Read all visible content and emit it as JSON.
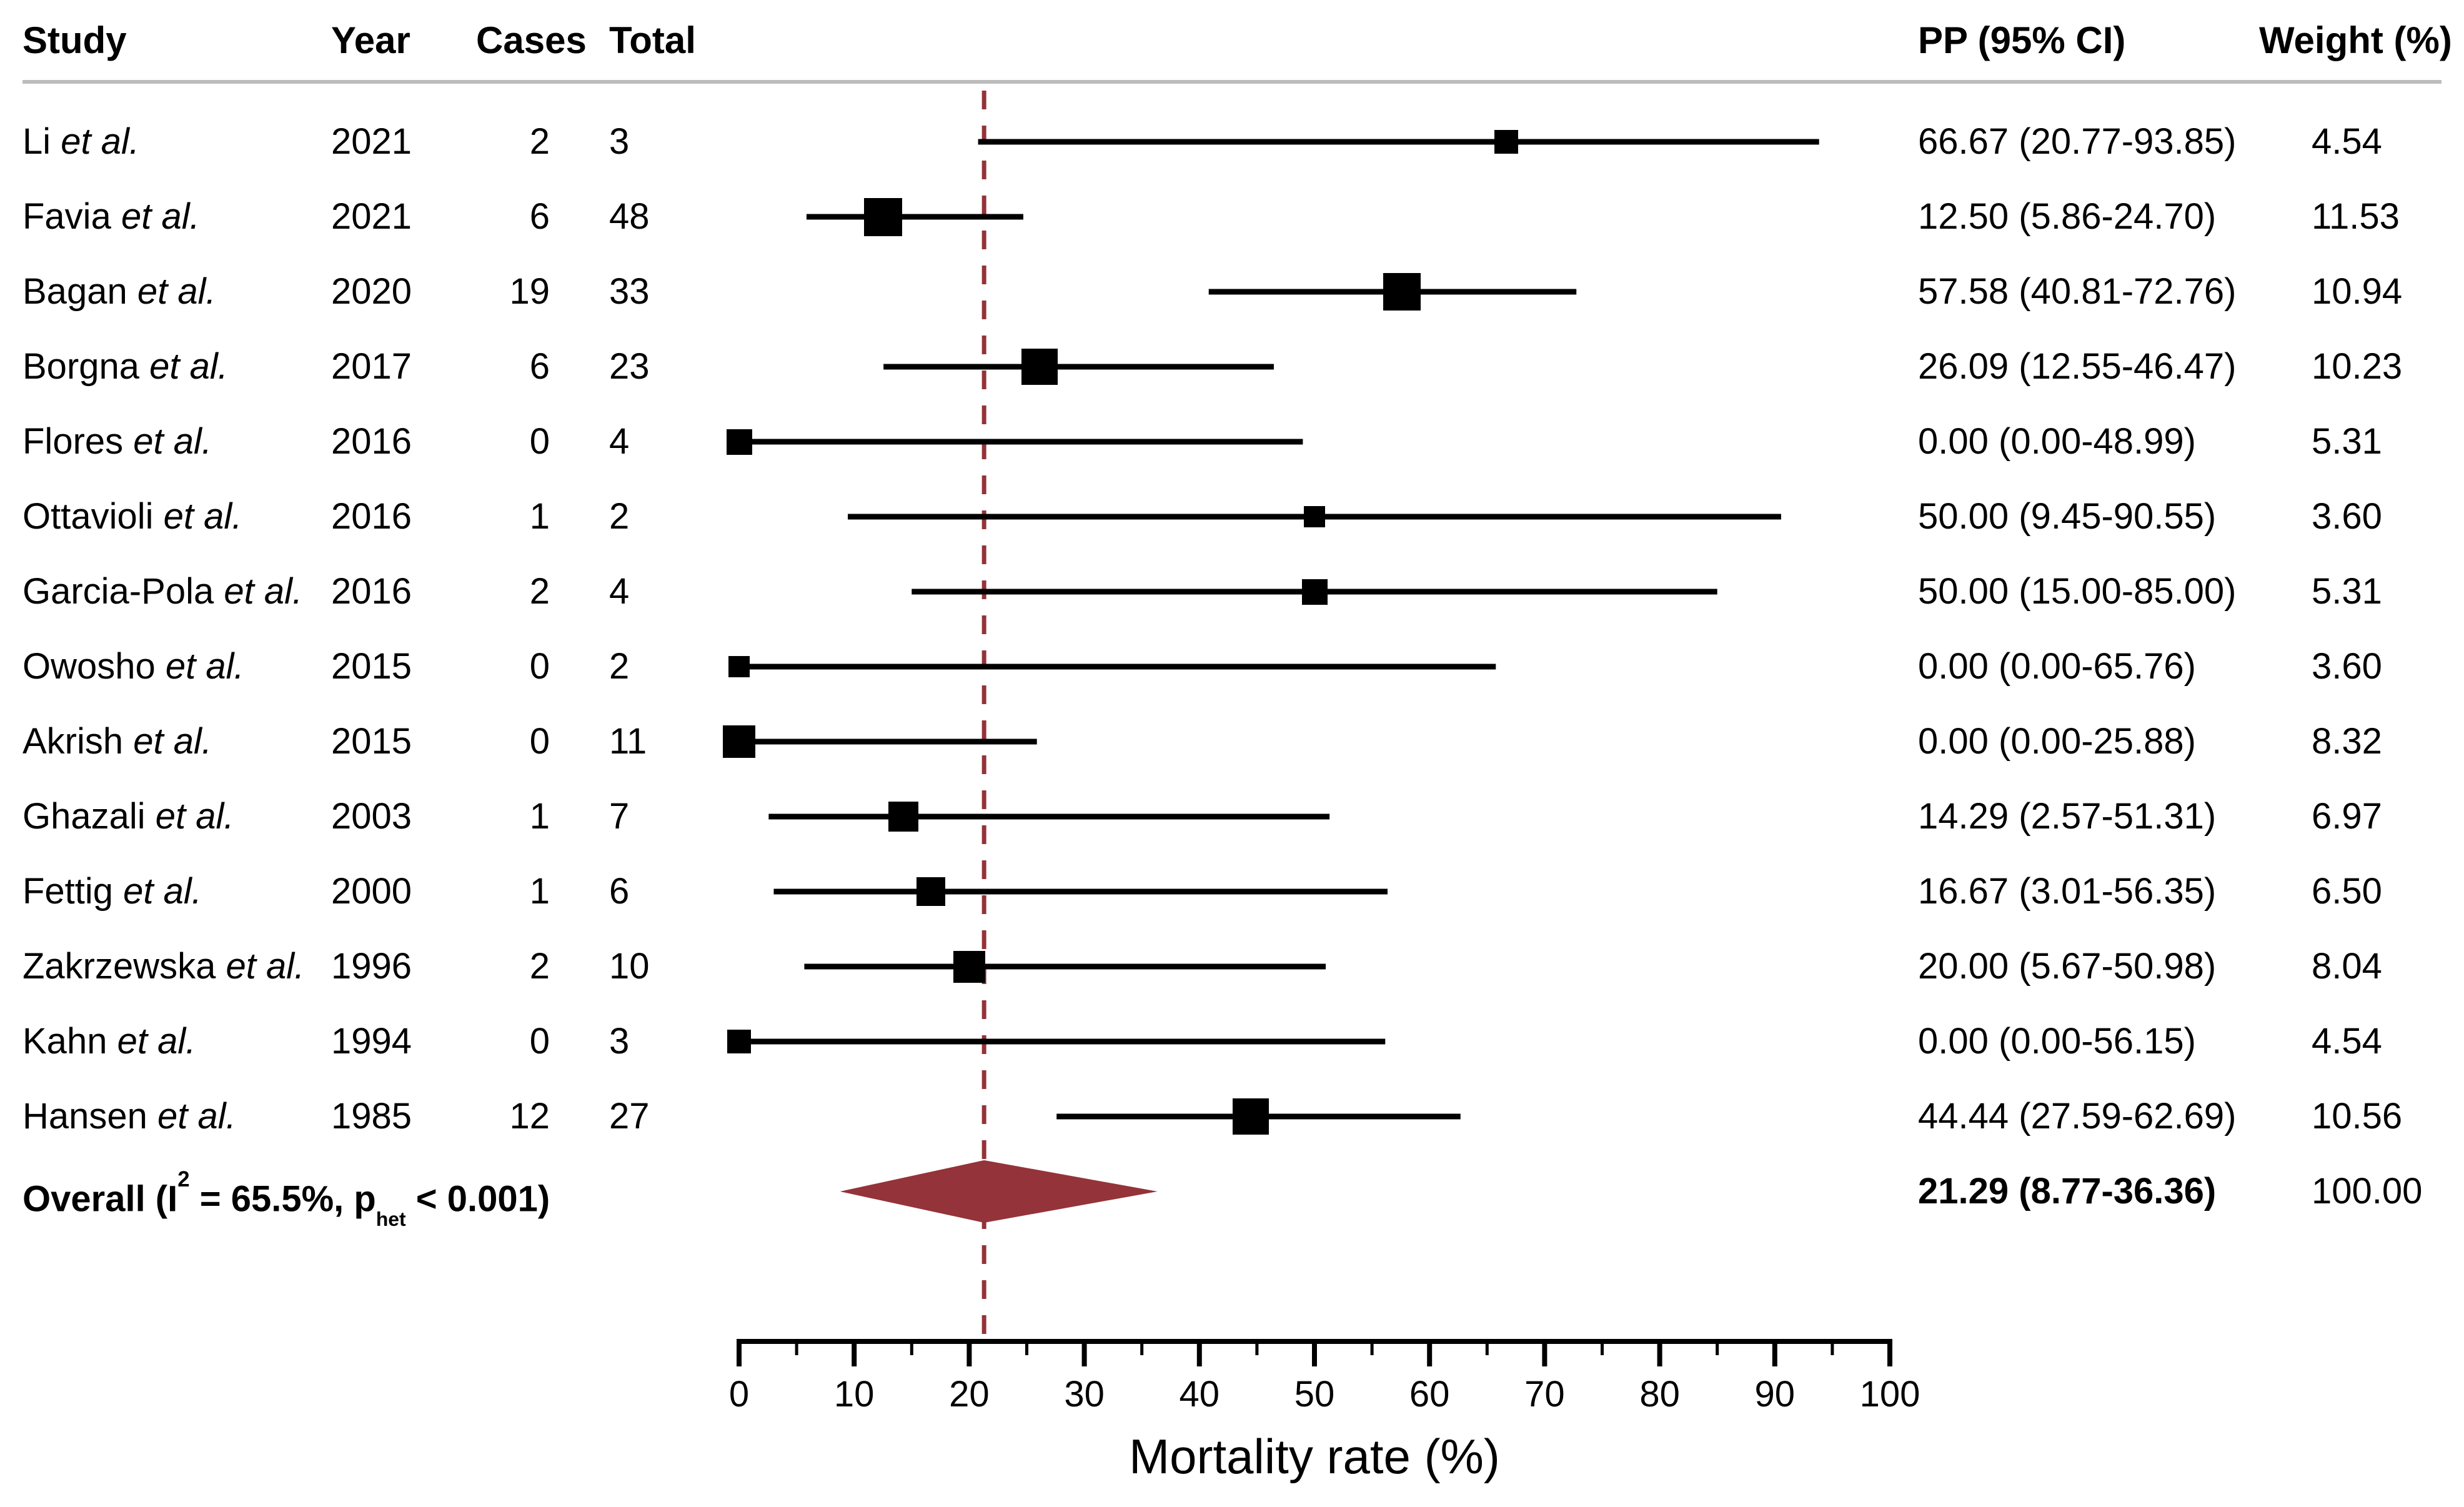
{
  "table": {
    "headers": {
      "study": "Study",
      "year": "Year",
      "cases": "Cases",
      "total": "Total",
      "pp_ci": "PP (95% CI)",
      "weight": "Weight (%)"
    }
  },
  "overall_row": {
    "label_prefix": "Overall  (I",
    "label_sup": "2",
    "label_mid": " = 65.5%, p",
    "label_sub": "het",
    "label_suffix": " < 0.001)"
  },
  "colors": {
    "marker": "#000000",
    "ci_line": "#000000",
    "summary_diamond": "#943339",
    "reference_line": "#943339",
    "separator_line": "#bcbcbc",
    "text": "#000000"
  },
  "chart_data": {
    "type": "scatter",
    "subtype": "forest_plot",
    "xlabel": "Mortality rate (%)",
    "xlim": [
      0,
      100
    ],
    "x_major_ticks": [
      0,
      10,
      20,
      30,
      40,
      50,
      60,
      70,
      80,
      90,
      100
    ],
    "x_minor_ticks": [
      5,
      15,
      25,
      35,
      45,
      55,
      65,
      75,
      85,
      95
    ],
    "grid": false,
    "reference_line_x": 21.29,
    "studies": [
      {
        "study": "Li et al.",
        "year": 2021,
        "cases": 2,
        "total": 3,
        "pp": 66.67,
        "ci_low": 20.77,
        "ci_high": 93.85,
        "weight": 4.54
      },
      {
        "study": "Favia et al.",
        "year": 2021,
        "cases": 6,
        "total": 48,
        "pp": 12.5,
        "ci_low": 5.86,
        "ci_high": 24.7,
        "weight": 11.53
      },
      {
        "study": "Bagan et al.",
        "year": 2020,
        "cases": 19,
        "total": 33,
        "pp": 57.58,
        "ci_low": 40.81,
        "ci_high": 72.76,
        "weight": 10.94
      },
      {
        "study": "Borgna et al.",
        "year": 2017,
        "cases": 6,
        "total": 23,
        "pp": 26.09,
        "ci_low": 12.55,
        "ci_high": 46.47,
        "weight": 10.23
      },
      {
        "study": "Flores et al.",
        "year": 2016,
        "cases": 0,
        "total": 4,
        "pp": 0.0,
        "ci_low": 0.0,
        "ci_high": 48.99,
        "weight": 5.31
      },
      {
        "study": "Ottavioli et al.",
        "year": 2016,
        "cases": 1,
        "total": 2,
        "pp": 50.0,
        "ci_low": 9.45,
        "ci_high": 90.55,
        "weight": 3.6
      },
      {
        "study": "Garcia-Pola et al.",
        "year": 2016,
        "cases": 2,
        "total": 4,
        "pp": 50.0,
        "ci_low": 15.0,
        "ci_high": 85.0,
        "weight": 5.31
      },
      {
        "study": "Owosho et al.",
        "year": 2015,
        "cases": 0,
        "total": 2,
        "pp": 0.0,
        "ci_low": 0.0,
        "ci_high": 65.76,
        "weight": 3.6
      },
      {
        "study": "Akrish et al.",
        "year": 2015,
        "cases": 0,
        "total": 11,
        "pp": 0.0,
        "ci_low": 0.0,
        "ci_high": 25.88,
        "weight": 8.32
      },
      {
        "study": "Ghazali et al.",
        "year": 2003,
        "cases": 1,
        "total": 7,
        "pp": 14.29,
        "ci_low": 2.57,
        "ci_high": 51.31,
        "weight": 6.97
      },
      {
        "study": "Fettig et al.",
        "year": 2000,
        "cases": 1,
        "total": 6,
        "pp": 16.67,
        "ci_low": 3.01,
        "ci_high": 56.35,
        "weight": 6.5
      },
      {
        "study": "Zakrzewska et al.",
        "year": 1996,
        "cases": 2,
        "total": 10,
        "pp": 20.0,
        "ci_low": 5.67,
        "ci_high": 50.98,
        "weight": 8.04
      },
      {
        "study": "Kahn et al.",
        "year": 1994,
        "cases": 0,
        "total": 3,
        "pp": 0.0,
        "ci_low": 0.0,
        "ci_high": 56.15,
        "weight": 4.54
      },
      {
        "study": "Hansen et al.",
        "year": 1985,
        "cases": 12,
        "total": 27,
        "pp": 44.44,
        "ci_low": 27.59,
        "ci_high": 62.69,
        "weight": 10.56
      }
    ],
    "overall": {
      "label": "Overall (I2 = 65.5%, phet < 0.001)",
      "i_squared_pct": 65.5,
      "p_het": "< 0.001",
      "pp": 21.29,
      "ci_low": 8.77,
      "ci_high": 36.36,
      "weight": 100.0
    }
  }
}
